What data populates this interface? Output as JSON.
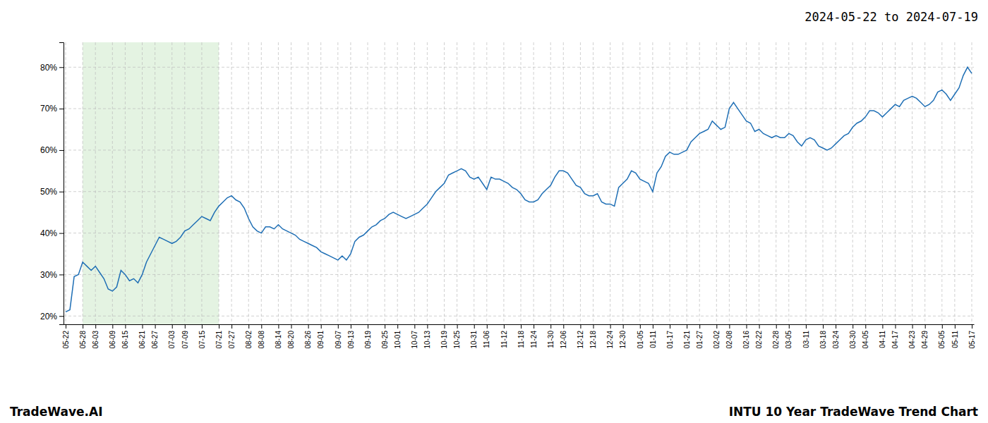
{
  "chart_data": {
    "type": "line",
    "title": "2024-05-22 to 2024-07-19",
    "annotations": [
      "TradeWave.AI",
      "INTU 10 Year TradeWave Trend Chart"
    ],
    "categories": [
      "05-22",
      null,
      null,
      null,
      "05-28",
      null,
      null,
      "06-03",
      null,
      null,
      null,
      "06-09",
      null,
      null,
      "06-15",
      null,
      null,
      null,
      "06-21",
      null,
      null,
      "06-27",
      null,
      null,
      null,
      "07-03",
      null,
      null,
      "07-09",
      null,
      null,
      null,
      "07-15",
      null,
      null,
      null,
      "07-21",
      null,
      null,
      "07-27",
      null,
      null,
      null,
      "08-02",
      null,
      null,
      "08-08",
      null,
      null,
      null,
      "08-14",
      null,
      null,
      "08-20",
      null,
      null,
      null,
      "08-26",
      null,
      null,
      "09-01",
      null,
      null,
      null,
      "09-07",
      null,
      null,
      "09-13",
      null,
      null,
      null,
      "09-19",
      null,
      null,
      null,
      "09-25",
      null,
      null,
      "10-01",
      null,
      null,
      null,
      "10-07",
      null,
      null,
      "10-13",
      null,
      null,
      null,
      "10-19",
      null,
      null,
      "10-25",
      null,
      null,
      null,
      "10-31",
      null,
      null,
      "11-06",
      null,
      null,
      null,
      "11-12",
      null,
      null,
      null,
      "11-18",
      null,
      null,
      "11-24",
      null,
      null,
      null,
      "11-30",
      null,
      null,
      "12-06",
      null,
      null,
      null,
      "12-12",
      null,
      null,
      "12-18",
      null,
      null,
      null,
      "12-24",
      null,
      null,
      "12-30",
      null,
      null,
      null,
      "01-05",
      null,
      null,
      "01-11",
      null,
      null,
      null,
      "01-17",
      null,
      null,
      null,
      "01-21",
      null,
      null,
      "01-27",
      null,
      null,
      null,
      "02-02",
      null,
      null,
      "02-08",
      null,
      null,
      null,
      "02-16",
      null,
      null,
      "02-22",
      null,
      null,
      null,
      "02-28",
      null,
      null,
      "03-05",
      null,
      null,
      null,
      "03-11",
      null,
      null,
      null,
      "03-18",
      null,
      null,
      "03-24",
      null,
      null,
      null,
      "03-30",
      null,
      null,
      "04-05",
      null,
      null,
      null,
      "04-11",
      null,
      null,
      "04-17",
      null,
      null,
      null,
      "04-23",
      null,
      null,
      "04-29",
      null,
      null,
      null,
      "05-05",
      null,
      null,
      "05-11",
      null,
      null,
      null,
      "05-17"
    ],
    "values": [
      21.0,
      21.5,
      29.5,
      30.0,
      33.0,
      32.0,
      31.0,
      32.0,
      30.5,
      29.0,
      26.5,
      26.0,
      27.0,
      31.0,
      30.0,
      28.5,
      29.0,
      28.0,
      30.0,
      33.0,
      35.0,
      37.0,
      39.0,
      38.5,
      38.0,
      37.5,
      38.0,
      39.0,
      40.5,
      41.0,
      42.0,
      43.0,
      44.0,
      43.5,
      43.0,
      45.0,
      46.5,
      47.5,
      48.5,
      49.0,
      48.0,
      47.5,
      46.0,
      43.5,
      41.5,
      40.5,
      40.0,
      41.5,
      41.5,
      41.0,
      42.0,
      41.0,
      40.5,
      40.0,
      39.5,
      38.5,
      38.0,
      37.5,
      37.0,
      36.5,
      35.5,
      35.0,
      34.5,
      34.0,
      33.5,
      34.5,
      33.5,
      35.0,
      38.0,
      39.0,
      39.5,
      40.5,
      41.5,
      42.0,
      43.0,
      43.5,
      44.5,
      45.0,
      44.5,
      44.0,
      43.5,
      44.0,
      44.5,
      45.0,
      46.0,
      47.0,
      48.5,
      50.0,
      51.0,
      52.0,
      54.0,
      54.5,
      55.0,
      55.5,
      55.0,
      53.5,
      53.0,
      53.5,
      52.0,
      50.5,
      53.5,
      53.0,
      53.0,
      52.5,
      52.0,
      51.0,
      50.5,
      49.5,
      48.0,
      47.5,
      47.5,
      48.0,
      49.5,
      50.5,
      51.5,
      53.5,
      55.0,
      55.0,
      54.5,
      53.0,
      51.5,
      51.0,
      49.5,
      49.0,
      49.0,
      49.5,
      47.5,
      47.0,
      47.0,
      46.5,
      51.0,
      52.0,
      53.0,
      55.0,
      54.5,
      53.0,
      52.5,
      52.0,
      50.0,
      54.5,
      56.0,
      58.5,
      59.5,
      59.0,
      59.0,
      59.5,
      60.0,
      62.0,
      63.0,
      64.0,
      64.5,
      65.0,
      67.0,
      66.0,
      65.0,
      65.5,
      70.0,
      71.5,
      70.0,
      68.5,
      67.0,
      66.5,
      64.5,
      65.0,
      64.0,
      63.5,
      63.0,
      63.5,
      63.0,
      63.0,
      64.0,
      63.5,
      62.0,
      61.0,
      62.5,
      63.0,
      62.5,
      61.0,
      60.5,
      60.0,
      60.5,
      61.5,
      62.5,
      63.5,
      64.0,
      65.5,
      66.5,
      67.0,
      68.0,
      69.5,
      69.5,
      69.0,
      68.0,
      69.0,
      70.0,
      71.0,
      70.5,
      72.0,
      72.5,
      73.0,
      72.5,
      71.5,
      70.5,
      71.0,
      72.0,
      74.0,
      74.5,
      73.5,
      72.0,
      73.5,
      75.0,
      78.0,
      80.0,
      78.5
    ],
    "color": "#1f6fb5",
    "shaded_region": {
      "start": "05-28",
      "end": "07-21",
      "color": "#d6ecd2"
    },
    "ylim": [
      18,
      86
    ],
    "yticks": [
      {
        "value": 20,
        "label": "20%"
      },
      {
        "value": 30,
        "label": "30%"
      },
      {
        "value": 40,
        "label": "40%"
      },
      {
        "value": 50,
        "label": "50%"
      },
      {
        "value": 60,
        "label": "60%"
      },
      {
        "value": 70,
        "label": "70%"
      },
      {
        "value": 80,
        "label": "80%"
      }
    ],
    "grid": true
  }
}
